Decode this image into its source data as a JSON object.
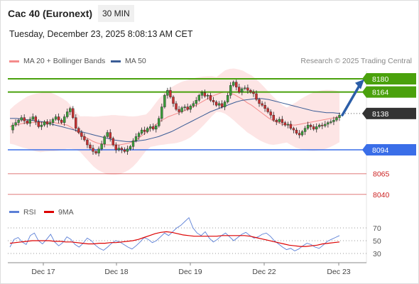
{
  "header": {
    "title": "Cac 40 (Euronext)",
    "period": "30 MIN",
    "datetime": "Tuesday, December 23, 2025 8:08:13 AM CET"
  },
  "legend": {
    "ma20_label": "MA 20 + Bollinger Bands",
    "ma20_color": "#f48b8b",
    "ma50_label": "MA 50",
    "ma50_color": "#3b5d96"
  },
  "credit": "Research © 2025 Trading Central",
  "colors": {
    "up": "#3a9d3a",
    "down": "#c73030",
    "resistance": "#4aa10c",
    "support": "#3a6ee8",
    "target": "#cc2222",
    "last": "#333333",
    "arrow": "#2b5ea8",
    "band": "#fde0e0",
    "rsi": "#5b7fd6",
    "rsi_ma": "#dd0000"
  },
  "chart_data": {
    "type": "candlestick",
    "price_levels": [
      {
        "kind": "resistance",
        "value": 8180,
        "label": "8180"
      },
      {
        "kind": "resistance",
        "value": 8164,
        "label": "8164"
      },
      {
        "kind": "last",
        "value": 8138,
        "label": "8138"
      },
      {
        "kind": "support",
        "value": 8094,
        "label": "8094"
      },
      {
        "kind": "target",
        "value": 8065,
        "label": "8065"
      },
      {
        "kind": "target",
        "value": 8040,
        "label": "8040"
      }
    ],
    "x_labels": [
      "Dec 17",
      "Dec 18",
      "Dec 19",
      "Dec 22",
      "Dec 23"
    ],
    "forecast_arrow": {
      "from": 8136,
      "to": 8176
    },
    "price_series": [
      8118,
      8124,
      8127,
      8130,
      8133,
      8129,
      8126,
      8131,
      8134,
      8128,
      8122,
      8124,
      8128,
      8125,
      8127,
      8131,
      8134,
      8130,
      8127,
      8134,
      8140,
      8144,
      8133,
      8120,
      8115,
      8110,
      8106,
      8100,
      8096,
      8092,
      8090,
      8095,
      8101,
      8110,
      8115,
      8108,
      8100,
      8094,
      8096,
      8094,
      8092,
      8095,
      8098,
      8105,
      8110,
      8114,
      8118,
      8116,
      8120,
      8122,
      8119,
      8123,
      8132,
      8146,
      8160,
      8166,
      8158,
      8150,
      8143,
      8140,
      8145,
      8146,
      8143,
      8147,
      8150,
      8154,
      8160,
      8163,
      8159,
      8160,
      8154,
      8152,
      8148,
      8150,
      8146,
      8152,
      8160,
      8172,
      8176,
      8170,
      8164,
      8168,
      8169,
      8166,
      8164,
      8162,
      8155,
      8150,
      8148,
      8144,
      8140,
      8136,
      8130,
      8128,
      8131,
      8127,
      8124,
      8125,
      8120,
      8118,
      8114,
      8112,
      8116,
      8120,
      8124,
      8122,
      8119,
      8122,
      8124,
      8123,
      8125,
      8127,
      8128,
      8130,
      8133,
      8136
    ],
    "ma20": [
      8122,
      8124,
      8125,
      8126,
      8127,
      8127,
      8127,
      8127,
      8128,
      8128,
      8127,
      8126,
      8125,
      8124,
      8121,
      8117,
      8113,
      8110,
      8107,
      8104,
      8102,
      8101,
      8100,
      8100,
      8100,
      8100,
      8101,
      8102,
      8104,
      8107,
      8111,
      8115,
      8120,
      8124,
      8128,
      8131,
      8134,
      8136,
      8138,
      8140,
      8142,
      8144,
      8147,
      8150,
      8153,
      8156,
      8159,
      8161,
      8163,
      8164,
      8163,
      8161,
      8158,
      8155,
      8151,
      8148,
      8144,
      8140,
      8136,
      8132,
      8129,
      8127,
      8125,
      8124,
      8124,
      8124,
      8125,
      8126,
      8127,
      8128,
      8129,
      8130,
      8131,
      8132,
      8133,
      8134
    ],
    "ma50": [
      8132,
      8132,
      8131,
      8130,
      8129,
      8128,
      8126,
      8124,
      8122,
      8120,
      8118,
      8116,
      8114,
      8112,
      8110,
      8108,
      8106,
      8105,
      8104,
      8104,
      8105,
      8106,
      8108,
      8110,
      8113,
      8116,
      8120,
      8124,
      8128,
      8132,
      8136,
      8140,
      8143,
      8146,
      8149,
      8152,
      8154,
      8155,
      8156,
      8156,
      8155,
      8153,
      8151,
      8149,
      8147,
      8145,
      8143,
      8141,
      8140,
      8139,
      8139,
      8138
    ],
    "rsi": {
      "levels": [
        70,
        50,
        30
      ],
      "legend": [
        "RSI",
        "9MA"
      ],
      "values": [
        40,
        52,
        55,
        48,
        44,
        58,
        62,
        50,
        45,
        52,
        60,
        48,
        42,
        47,
        56,
        52,
        44,
        40,
        46,
        54,
        50,
        43,
        38,
        35,
        40,
        46,
        50,
        48,
        44,
        40,
        37,
        42,
        48,
        55,
        52,
        47,
        50,
        56,
        62,
        58,
        64,
        70,
        74,
        80,
        86,
        70,
        62,
        58,
        64,
        54,
        48,
        52,
        58,
        62,
        56,
        50,
        55,
        60,
        63,
        58,
        54,
        56,
        60,
        62,
        57,
        50,
        45,
        40,
        36,
        38,
        34,
        37,
        42,
        46,
        44,
        40,
        38,
        43,
        49,
        52,
        55,
        58
      ],
      "ma": [
        46,
        47,
        48,
        49,
        50,
        50,
        50,
        50,
        49,
        49,
        48,
        48,
        47,
        46,
        45,
        45,
        46,
        46,
        47,
        47,
        48,
        49,
        50,
        52,
        55,
        58,
        61,
        63,
        64,
        63,
        61,
        59,
        58,
        57,
        57,
        57,
        57,
        57,
        58,
        58,
        58,
        58,
        58,
        57,
        55,
        53,
        51,
        49,
        47,
        45,
        43,
        42,
        41,
        41,
        42,
        43,
        45,
        46,
        47,
        48
      ]
    }
  }
}
